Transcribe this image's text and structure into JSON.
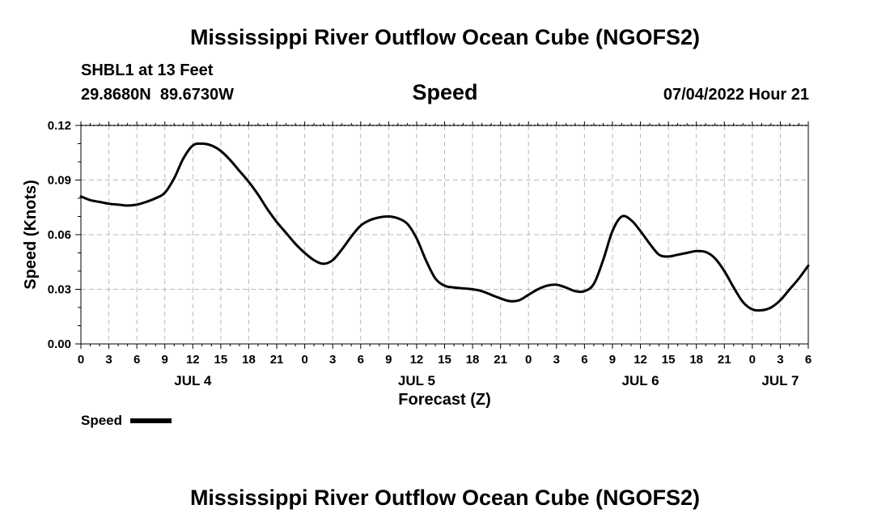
{
  "page": {
    "title_top": "Mississippi River Outflow Ocean Cube (NGOFS2)",
    "title_bottom": "Mississippi River Outflow Ocean Cube (NGOFS2)",
    "station_line": "SHBL1 at 13 Feet",
    "coords_line": "29.8680N  89.6730W",
    "variable": "Speed",
    "timestamp": "07/04/2022 Hour 21"
  },
  "chart_data": {
    "type": "line",
    "title": "Speed",
    "xlabel": "Forecast (Z)",
    "ylabel": "Speed (Knots)",
    "x_unit": "hours since JUL 4 00Z",
    "xlim": [
      0,
      78
    ],
    "ylim": [
      0,
      0.12
    ],
    "yticks": [
      0,
      0.03,
      0.06,
      0.09,
      0.12
    ],
    "ytick_labels": [
      "0.00",
      "0.03",
      "0.06",
      "0.09",
      "0.12"
    ],
    "xticks": [
      0,
      3,
      6,
      9,
      12,
      15,
      18,
      21,
      24,
      27,
      30,
      33,
      36,
      39,
      42,
      45,
      48,
      51,
      54,
      57,
      60,
      63,
      66,
      69,
      72,
      75,
      78
    ],
    "xtick_labels": [
      "0",
      "3",
      "6",
      "9",
      "12",
      "15",
      "18",
      "21",
      "0",
      "3",
      "6",
      "9",
      "12",
      "15",
      "18",
      "21",
      "0",
      "3",
      "6",
      "9",
      "12",
      "15",
      "18",
      "21",
      "0",
      "3",
      "6"
    ],
    "day_labels": [
      {
        "x": 12,
        "label": "JUL 4"
      },
      {
        "x": 36,
        "label": "JUL 5"
      },
      {
        "x": 60,
        "label": "JUL 6"
      },
      {
        "x": 75,
        "label": "JUL 7"
      }
    ],
    "grid": true,
    "legend": {
      "position": "bottom-left",
      "label": "Speed"
    },
    "series": [
      {
        "name": "Speed",
        "x": [
          0,
          1,
          2,
          3,
          4,
          5,
          6,
          7,
          8,
          9,
          10,
          11,
          12,
          13,
          14,
          15,
          16,
          17,
          18,
          19,
          20,
          21,
          22,
          23,
          24,
          25,
          26,
          27,
          28,
          29,
          30,
          31,
          32,
          33,
          34,
          35,
          36,
          37,
          38,
          39,
          40,
          41,
          42,
          43,
          44,
          45,
          46,
          47,
          48,
          49,
          50,
          51,
          52,
          53,
          54,
          55,
          56,
          57,
          58,
          59,
          60,
          61,
          62,
          63,
          64,
          65,
          66,
          67,
          68,
          69,
          70,
          71,
          72,
          73,
          74,
          75,
          76,
          77,
          78
        ],
        "values": [
          0.081,
          0.079,
          0.078,
          0.077,
          0.0765,
          0.076,
          0.0765,
          0.078,
          0.08,
          0.083,
          0.091,
          0.102,
          0.109,
          0.11,
          0.109,
          0.106,
          0.101,
          0.095,
          0.089,
          0.082,
          0.074,
          0.067,
          0.061,
          0.055,
          0.05,
          0.046,
          0.044,
          0.046,
          0.052,
          0.059,
          0.065,
          0.068,
          0.0695,
          0.07,
          0.069,
          0.066,
          0.058,
          0.046,
          0.036,
          0.032,
          0.031,
          0.0305,
          0.03,
          0.029,
          0.027,
          0.025,
          0.0235,
          0.024,
          0.027,
          0.03,
          0.032,
          0.0325,
          0.031,
          0.029,
          0.029,
          0.033,
          0.046,
          0.062,
          0.07,
          0.068,
          0.062,
          0.055,
          0.049,
          0.048,
          0.049,
          0.05,
          0.051,
          0.0505,
          0.047,
          0.04,
          0.031,
          0.023,
          0.019,
          0.0185,
          0.02,
          0.024,
          0.03,
          0.036,
          0.043
        ]
      }
    ]
  }
}
